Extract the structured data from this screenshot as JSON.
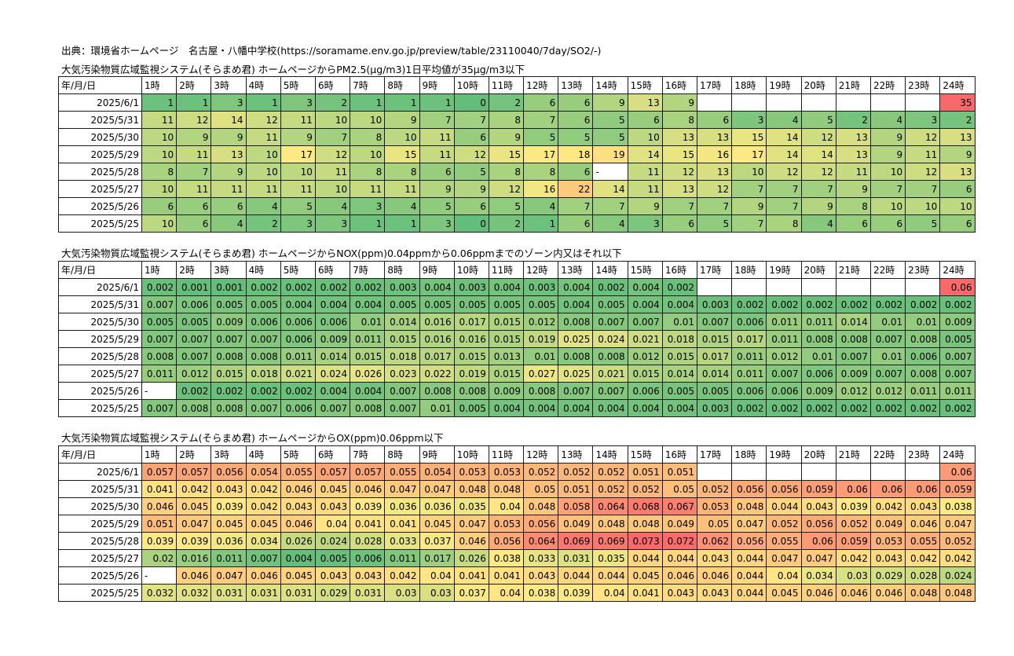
{
  "source_line": "出典：環境省ホームページ　名古屋・八幡中学校(https://soramame.env.go.jp/preview/table/23110040/7day/SO2/-)",
  "header_cells": [
    "年/月/日",
    "1時",
    "2時",
    "3時",
    "4時",
    "5時",
    "6時",
    "7時",
    "8時",
    "9時",
    "10時",
    "11時",
    "12時",
    "13時",
    "14時",
    "15時",
    "16時",
    "17時",
    "18時",
    "19時",
    "20時",
    "21時",
    "22時",
    "23時",
    "24時"
  ],
  "sections": [
    {
      "title": "大気汚染物質広域監視システム(そらまめ君) ホームページからPM2.5(μg/m3)1日平均値が35μg/m3以下",
      "rows": [
        {
          "date": "2025/6/1",
          "values": [
            "1",
            "1",
            "3",
            "1",
            "3",
            "2",
            "1",
            "1",
            "1",
            "0",
            "2",
            "6",
            "6",
            "9",
            "13",
            "9",
            "",
            "",
            "",
            "",
            "",
            "",
            "",
            "35"
          ]
        },
        {
          "date": "2025/5/31",
          "values": [
            "11",
            "12",
            "14",
            "12",
            "11",
            "10",
            "10",
            "9",
            "7",
            "7",
            "8",
            "7",
            "6",
            "5",
            "6",
            "8",
            "6",
            "3",
            "4",
            "5",
            "2",
            "4",
            "3",
            "2"
          ]
        },
        {
          "date": "2025/5/30",
          "values": [
            "10",
            "9",
            "9",
            "11",
            "9",
            "7",
            "8",
            "10",
            "11",
            "6",
            "9",
            "5",
            "5",
            "5",
            "10",
            "13",
            "13",
            "15",
            "14",
            "12",
            "13",
            "9",
            "12",
            "13"
          ]
        },
        {
          "date": "2025/5/29",
          "values": [
            "10",
            "11",
            "13",
            "10",
            "17",
            "12",
            "10",
            "15",
            "11",
            "12",
            "15",
            "17",
            "18",
            "19",
            "14",
            "15",
            "16",
            "17",
            "14",
            "14",
            "13",
            "9",
            "11",
            "9"
          ]
        },
        {
          "date": "2025/5/28",
          "values": [
            "8",
            "7",
            "9",
            "10",
            "10",
            "11",
            "8",
            "8",
            "6",
            "5",
            "8",
            "8",
            "6",
            "-",
            "11",
            "12",
            "13",
            "10",
            "12",
            "12",
            "11",
            "10",
            "12",
            "13"
          ]
        },
        {
          "date": "2025/5/27",
          "values": [
            "10",
            "11",
            "11",
            "11",
            "11",
            "10",
            "11",
            "11",
            "9",
            "9",
            "12",
            "16",
            "22",
            "14",
            "11",
            "13",
            "12",
            "7",
            "7",
            "7",
            "9",
            "7",
            "7",
            "6"
          ]
        },
        {
          "date": "2025/5/26",
          "values": [
            "6",
            "6",
            "6",
            "4",
            "5",
            "4",
            "3",
            "4",
            "5",
            "6",
            "5",
            "4",
            "7",
            "7",
            "9",
            "7",
            "7",
            "9",
            "7",
            "9",
            "8",
            "10",
            "10",
            "10"
          ]
        },
        {
          "date": "2025/5/25",
          "values": [
            "10",
            "6",
            "4",
            "2",
            "3",
            "3",
            "1",
            "1",
            "3",
            "0",
            "2",
            "1",
            "6",
            "4",
            "3",
            "6",
            "5",
            "7",
            "8",
            "4",
            "6",
            "6",
            "5",
            "6"
          ]
        }
      ]
    },
    {
      "title": "大気汚染物質広域監視システム(そらまめ君) ホームページからNOX(ppm)0.04ppmから0.06ppmまでのゾーン内又はそれ以下",
      "rows": [
        {
          "date": "2025/6/1",
          "values": [
            "0.002",
            "0.001",
            "0.001",
            "0.002",
            "0.002",
            "0.002",
            "0.002",
            "0.003",
            "0.004",
            "0.003",
            "0.004",
            "0.003",
            "0.004",
            "0.002",
            "0.004",
            "0.002",
            "",
            "",
            "",
            "",
            "",
            "",
            "",
            "0.06"
          ]
        },
        {
          "date": "2025/5/31",
          "values": [
            "0.007",
            "0.006",
            "0.005",
            "0.005",
            "0.004",
            "0.004",
            "0.004",
            "0.005",
            "0.005",
            "0.005",
            "0.005",
            "0.005",
            "0.004",
            "0.005",
            "0.004",
            "0.004",
            "0.003",
            "0.002",
            "0.002",
            "0.002",
            "0.002",
            "0.002",
            "0.002",
            "0.002"
          ]
        },
        {
          "date": "2025/5/30",
          "values": [
            "0.005",
            "0.005",
            "0.009",
            "0.006",
            "0.006",
            "0.006",
            "0.01",
            "0.014",
            "0.016",
            "0.017",
            "0.015",
            "0.012",
            "0.008",
            "0.007",
            "0.007",
            "0.01",
            "0.007",
            "0.006",
            "0.011",
            "0.011",
            "0.014",
            "0.01",
            "0.01",
            "0.009"
          ]
        },
        {
          "date": "2025/5/29",
          "values": [
            "0.007",
            "0.007",
            "0.007",
            "0.007",
            "0.006",
            "0.009",
            "0.011",
            "0.015",
            "0.016",
            "0.016",
            "0.015",
            "0.019",
            "0.025",
            "0.024",
            "0.021",
            "0.018",
            "0.015",
            "0.017",
            "0.011",
            "0.008",
            "0.008",
            "0.007",
            "0.008",
            "0.005"
          ]
        },
        {
          "date": "2025/5/28",
          "values": [
            "0.008",
            "0.007",
            "0.008",
            "0.008",
            "0.011",
            "0.014",
            "0.015",
            "0.018",
            "0.017",
            "0.015",
            "0.013",
            "0.01",
            "0.008",
            "0.008",
            "0.012",
            "0.015",
            "0.017",
            "0.011",
            "0.012",
            "0.01",
            "0.007",
            "0.01",
            "0.006",
            "0.007"
          ]
        },
        {
          "date": "2025/5/27",
          "values": [
            "0.011",
            "0.012",
            "0.015",
            "0.018",
            "0.021",
            "0.024",
            "0.026",
            "0.023",
            "0.022",
            "0.019",
            "0.015",
            "0.027",
            "0.025",
            "0.021",
            "0.015",
            "0.014",
            "0.014",
            "0.011",
            "0.007",
            "0.006",
            "0.009",
            "0.007",
            "0.008",
            "0.007"
          ]
        },
        {
          "date": "2025/5/26",
          "values": [
            "-",
            "0.002",
            "0.002",
            "0.002",
            "0.002",
            "0.004",
            "0.004",
            "0.007",
            "0.008",
            "0.008",
            "0.009",
            "0.008",
            "0.007",
            "0.007",
            "0.006",
            "0.005",
            "0.005",
            "0.006",
            "0.006",
            "0.009",
            "0.012",
            "0.012",
            "0.011",
            "0.011"
          ]
        },
        {
          "date": "2025/5/25",
          "values": [
            "0.007",
            "0.008",
            "0.008",
            "0.007",
            "0.006",
            "0.007",
            "0.008",
            "0.007",
            "0.01",
            "0.005",
            "0.004",
            "0.004",
            "0.004",
            "0.004",
            "0.004",
            "0.004",
            "0.003",
            "0.002",
            "0.002",
            "0.002",
            "0.002",
            "0.002",
            "0.002",
            "0.002"
          ]
        }
      ]
    },
    {
      "title": "大気汚染物質広域監視システム(そらまめ君) ホームページからOX(ppm)0.06ppm以下",
      "rows": [
        {
          "date": "2025/6/1",
          "values": [
            "0.057",
            "0.057",
            "0.056",
            "0.054",
            "0.055",
            "0.057",
            "0.057",
            "0.055",
            "0.054",
            "0.053",
            "0.053",
            "0.052",
            "0.052",
            "0.052",
            "0.051",
            "0.051",
            "",
            "",
            "",
            "",
            "",
            "",
            "",
            "0.06"
          ]
        },
        {
          "date": "2025/5/31",
          "values": [
            "0.041",
            "0.042",
            "0.043",
            "0.042",
            "0.046",
            "0.045",
            "0.046",
            "0.047",
            "0.047",
            "0.048",
            "0.048",
            "0.05",
            "0.051",
            "0.052",
            "0.052",
            "0.05",
            "0.052",
            "0.056",
            "0.056",
            "0.059",
            "0.06",
            "0.06",
            "0.06",
            "0.059"
          ]
        },
        {
          "date": "2025/5/30",
          "values": [
            "0.046",
            "0.045",
            "0.039",
            "0.042",
            "0.043",
            "0.043",
            "0.039",
            "0.036",
            "0.036",
            "0.035",
            "0.04",
            "0.048",
            "0.058",
            "0.064",
            "0.068",
            "0.067",
            "0.053",
            "0.048",
            "0.044",
            "0.043",
            "0.039",
            "0.042",
            "0.043",
            "0.038"
          ]
        },
        {
          "date": "2025/5/29",
          "values": [
            "0.051",
            "0.047",
            "0.045",
            "0.045",
            "0.046",
            "0.04",
            "0.041",
            "0.041",
            "0.045",
            "0.047",
            "0.053",
            "0.056",
            "0.049",
            "0.048",
            "0.048",
            "0.049",
            "0.05",
            "0.047",
            "0.052",
            "0.056",
            "0.052",
            "0.049",
            "0.046",
            "0.047"
          ]
        },
        {
          "date": "2025/5/28",
          "values": [
            "0.039",
            "0.039",
            "0.036",
            "0.034",
            "0.026",
            "0.024",
            "0.028",
            "0.033",
            "0.037",
            "0.046",
            "0.056",
            "0.064",
            "0.069",
            "0.069",
            "0.073",
            "0.072",
            "0.062",
            "0.056",
            "0.055",
            "0.06",
            "0.059",
            "0.053",
            "0.055",
            "0.052"
          ]
        },
        {
          "date": "2025/5/27",
          "values": [
            "0.02",
            "0.016",
            "0.011",
            "0.007",
            "0.004",
            "0.005",
            "0.006",
            "0.011",
            "0.017",
            "0.026",
            "0.038",
            "0.033",
            "0.031",
            "0.035",
            "0.044",
            "0.044",
            "0.043",
            "0.044",
            "0.047",
            "0.047",
            "0.042",
            "0.043",
            "0.042",
            "0.042"
          ]
        },
        {
          "date": "2025/5/26",
          "values": [
            "-",
            "0.046",
            "0.047",
            "0.046",
            "0.045",
            "0.043",
            "0.043",
            "0.042",
            "0.04",
            "0.041",
            "0.041",
            "0.043",
            "0.044",
            "0.044",
            "0.045",
            "0.046",
            "0.046",
            "0.044",
            "0.04",
            "0.034",
            "0.03",
            "0.029",
            "0.028",
            "0.024"
          ]
        },
        {
          "date": "2025/5/25",
          "values": [
            "0.032",
            "0.032",
            "0.031",
            "0.031",
            "0.031",
            "0.029",
            "0.031",
            "0.03",
            "0.03",
            "0.037",
            "0.04",
            "0.038",
            "0.039",
            "0.04",
            "0.041",
            "0.043",
            "0.043",
            "0.044",
            "0.045",
            "0.046",
            "0.046",
            "0.046",
            "0.048",
            "0.048"
          ]
        }
      ]
    }
  ],
  "colors": {
    "scale_low": "#63be7b",
    "scale_mid": "#ffeb84",
    "scale_high": "#f8696b",
    "border": "#1a1a1a",
    "background": "#ffffff"
  }
}
